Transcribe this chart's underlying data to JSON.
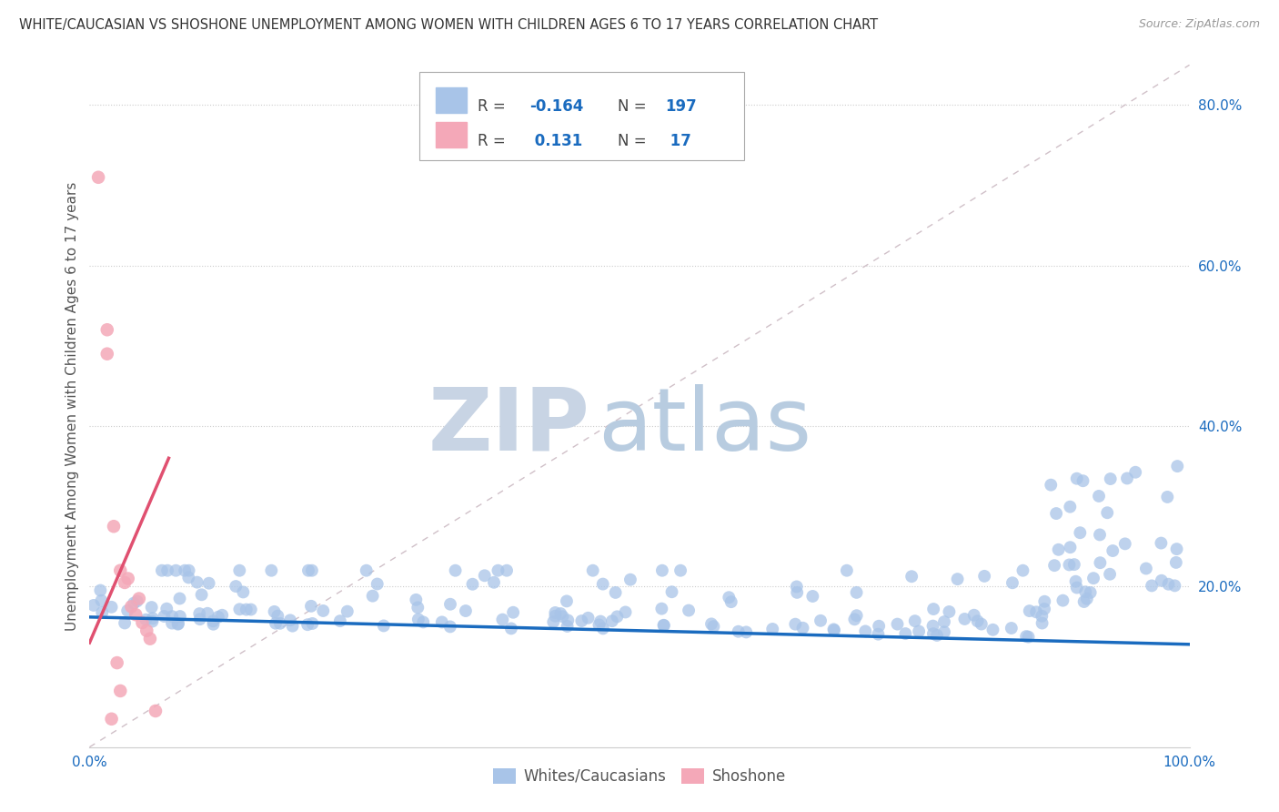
{
  "title": "WHITE/CAUCASIAN VS SHOSHONE UNEMPLOYMENT AMONG WOMEN WITH CHILDREN AGES 6 TO 17 YEARS CORRELATION CHART",
  "source": "Source: ZipAtlas.com",
  "ylabel_label": "Unemployment Among Women with Children Ages 6 to 17 years",
  "legend_r_blue": "-0.164",
  "legend_n_blue": "197",
  "legend_r_pink": "0.131",
  "legend_n_pink": "17",
  "blue_scatter_color": "#a8c4e8",
  "pink_scatter_color": "#f4a8b8",
  "blue_line_color": "#1a6bbf",
  "pink_line_color": "#e05070",
  "text_blue_color": "#1a6bbf",
  "title_color": "#333333",
  "source_color": "#999999",
  "ylabel_color": "#555555",
  "grid_color": "#cccccc",
  "watermark_zip_color": "#c8d4e4",
  "watermark_atlas_color": "#b8cce0",
  "diag_color": "#d0c0c8",
  "bottom_legend_color": "#555555",
  "xlim": [
    0.0,
    1.0
  ],
  "ylim": [
    0.0,
    0.85
  ],
  "yticks": [
    0.2,
    0.4,
    0.6,
    0.8
  ],
  "ytick_labels": [
    "20.0%",
    "40.0%",
    "60.0%",
    "80.0%"
  ],
  "xticks": [
    0.0,
    1.0
  ],
  "xtick_labels": [
    "0.0%",
    "100.0%"
  ],
  "pink_x": [
    0.008,
    0.016,
    0.016,
    0.022,
    0.028,
    0.032,
    0.038,
    0.042,
    0.048,
    0.052,
    0.055,
    0.025,
    0.035,
    0.045,
    0.06,
    0.028,
    0.02
  ],
  "pink_y": [
    0.71,
    0.52,
    0.49,
    0.275,
    0.22,
    0.205,
    0.175,
    0.165,
    0.155,
    0.145,
    0.135,
    0.105,
    0.21,
    0.185,
    0.045,
    0.07,
    0.035
  ],
  "blue_trend_x0": 0.0,
  "blue_trend_x1": 1.0,
  "blue_trend_y0": 0.162,
  "blue_trend_y1": 0.128,
  "pink_trend_x0": 0.0,
  "pink_trend_x1": 0.072,
  "pink_trend_y0": 0.13,
  "pink_trend_y1": 0.36
}
